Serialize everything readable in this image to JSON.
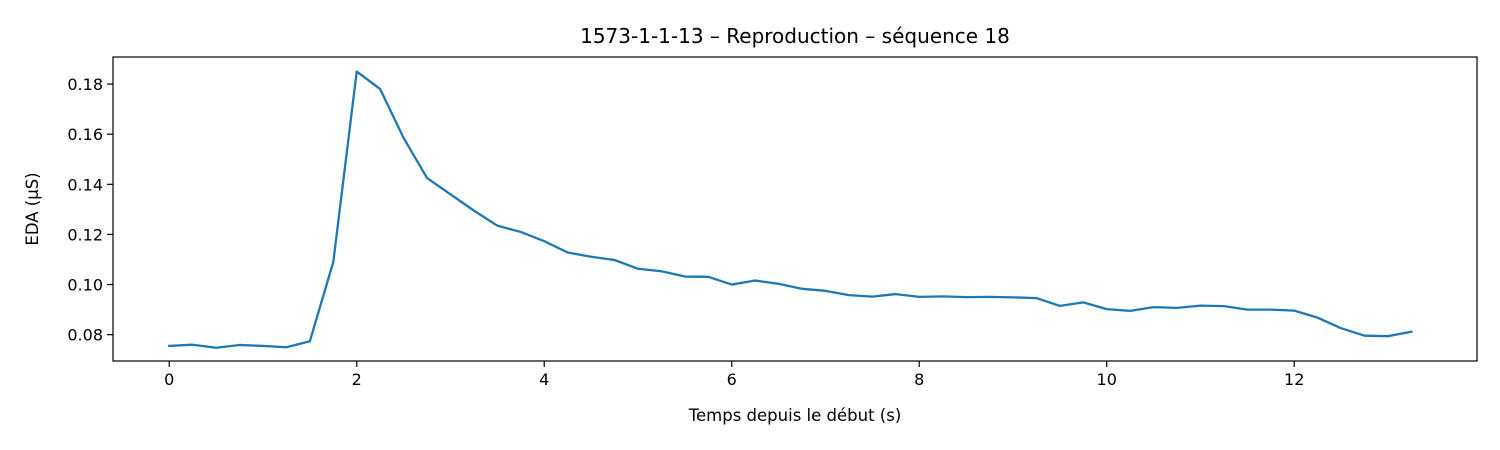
{
  "chart_data": {
    "type": "line",
    "title": "1573-1-1-13 – Reproduction – séquence 18",
    "xlabel": "Temps depuis le début (s)",
    "ylabel": "EDA (µS)",
    "xlim": [
      -0.6,
      13.95
    ],
    "ylim": [
      0.0695,
      0.1908
    ],
    "xticks": [
      0,
      2,
      4,
      6,
      8,
      10,
      12
    ],
    "xtick_labels": [
      "0",
      "2",
      "4",
      "6",
      "8",
      "10",
      "12"
    ],
    "yticks": [
      0.08,
      0.1,
      0.12,
      0.14,
      0.16,
      0.18
    ],
    "ytick_labels": [
      "0.08",
      "0.10",
      "0.12",
      "0.14",
      "0.16",
      "0.18"
    ],
    "grid": false,
    "colors": {
      "line": "#1f77b4",
      "axes": "#000000",
      "background": "#ffffff"
    },
    "series": [
      {
        "x": [
          0,
          0.25,
          0.5,
          0.75,
          1.0,
          1.25,
          1.5,
          1.75,
          2.0,
          2.25,
          2.5,
          2.75,
          3.0,
          3.25,
          3.5,
          3.75,
          4.0,
          4.25,
          4.5,
          4.75,
          5.0,
          5.25,
          5.5,
          5.75,
          6.0,
          6.25,
          6.5,
          6.75,
          7.0,
          7.25,
          7.5,
          7.75,
          8.0,
          8.25,
          8.5,
          8.75,
          9.0,
          9.25,
          9.5,
          9.75,
          10.0,
          10.25,
          10.5,
          10.75,
          11.0,
          11.25,
          11.5,
          11.75,
          12.0,
          12.25,
          12.5,
          12.75,
          13.0,
          13.25
        ],
        "y": [
          0.0755,
          0.076,
          0.0748,
          0.0759,
          0.0755,
          0.075,
          0.0774,
          0.109,
          0.185,
          0.178,
          0.1585,
          0.1425,
          0.136,
          0.1295,
          0.1235,
          0.121,
          0.1173,
          0.1128,
          0.1111,
          0.1098,
          0.1063,
          0.1053,
          0.1032,
          0.1031,
          0.1,
          0.1016,
          0.1003,
          0.0983,
          0.0975,
          0.0958,
          0.0952,
          0.0962,
          0.0951,
          0.0953,
          0.095,
          0.0951,
          0.0949,
          0.0946,
          0.0915,
          0.0929,
          0.0902,
          0.0895,
          0.091,
          0.0907,
          0.0916,
          0.0914,
          0.09,
          0.09,
          0.0896,
          0.0868,
          0.0826,
          0.0796,
          0.0794,
          0.0812
        ]
      }
    ]
  }
}
